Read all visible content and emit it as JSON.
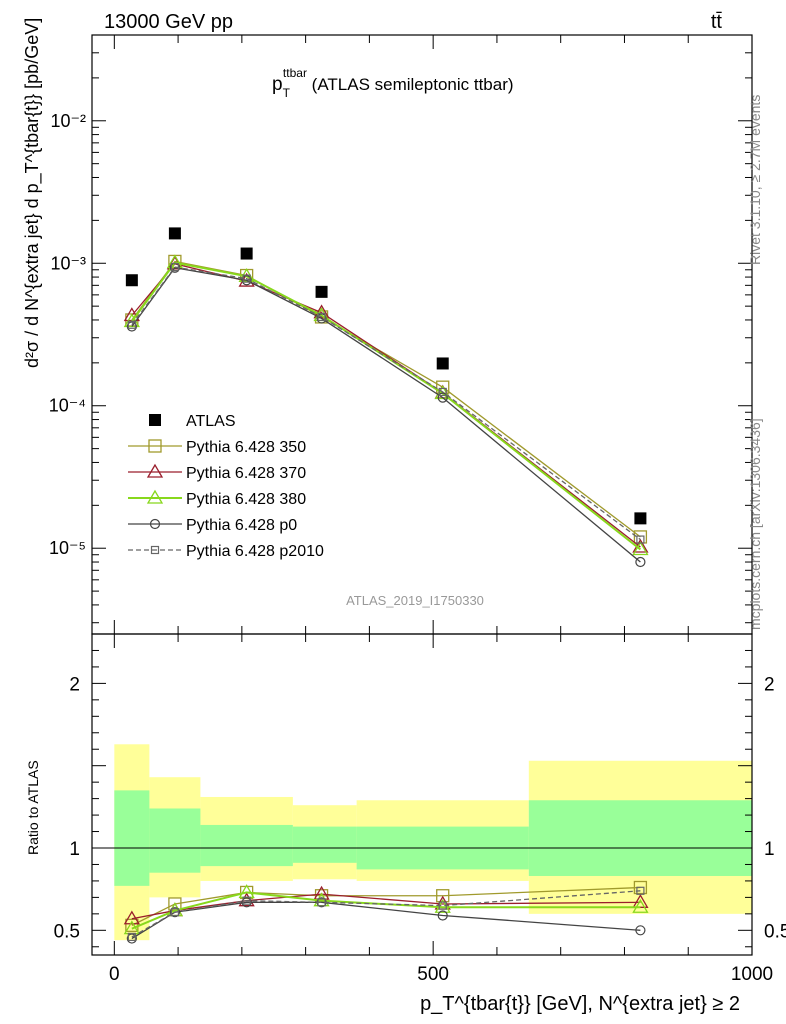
{
  "header": {
    "left": "13000 GeV pp",
    "right": "tt̄"
  },
  "side_labels": {
    "rivet": "Rivet 3.1.10, ≥ 2.7M events",
    "mcplots": "mcplots.cern.ch [arXiv:1306.3436]"
  },
  "plot_title": {
    "main": "p",
    "sub": "T",
    "sup": "ttbar",
    "rest": " (ATLAS semileptonic ttbar)"
  },
  "watermark": "ATLAS_2019_I1750330",
  "y_axis_title": "d²σ / d N^{extra jet} d p_T^{tbar{t}} [pb/GeV]",
  "ratio_axis_title": "Ratio to ATLAS",
  "x_axis_title": "p_T^{tbar{t}} [GeV], N^{extra jet} ≥ 2",
  "colors": {
    "atlas": "#000000",
    "p350": "#a09a2c",
    "p370": "#9a1e2c",
    "p380": "#88d81c",
    "p0": "#444444",
    "p2010": "#666666",
    "band_outer": "#ffff99",
    "band_inner": "#99ff99"
  },
  "chart_data": [
    {
      "type": "line",
      "yscale": "log",
      "xlim": [
        -35,
        1000
      ],
      "ylim": [
        2.5e-06,
        0.04
      ],
      "x_ticks": [
        0,
        500,
        1000
      ],
      "y_ticks": [
        {
          "value": 1e-05,
          "label": "10⁻⁵"
        },
        {
          "value": 0.0001,
          "label": "10⁻⁴"
        },
        {
          "value": 0.001,
          "label": "10⁻³"
        },
        {
          "value": 0.01,
          "label": "10⁻²"
        }
      ],
      "x": [
        27.5,
        95,
        207.5,
        325,
        515,
        825
      ],
      "series": [
        {
          "name": "ATLAS",
          "key": "atlas",
          "marker": "square-filled",
          "values": [
            0.00076,
            0.00162,
            0.00117,
            0.00063,
            0.000198,
            1.62e-05
          ]
        },
        {
          "name": "Pythia 6.428 350",
          "key": "p350",
          "marker": "square-open",
          "values": [
            0.0004,
            0.00103,
            0.00082,
            0.00042,
            0.000135,
            1.2e-05
          ]
        },
        {
          "name": "Pythia 6.428 370",
          "key": "p370",
          "marker": "triangle-open",
          "values": [
            0.00043,
            0.00099,
            0.00075,
            0.00045,
            0.000123,
            1.02e-05
          ]
        },
        {
          "name": "Pythia 6.428 380",
          "key": "p380",
          "marker": "triangle-open",
          "values": [
            0.00039,
            0.00101,
            0.00081,
            0.00043,
            0.000122,
            9.8e-06
          ]
        },
        {
          "name": "Pythia 6.428 p0",
          "key": "p0",
          "marker": "circle-open",
          "values": [
            0.00036,
            0.00093,
            0.00076,
            0.00041,
            0.000114,
            8e-06
          ]
        },
        {
          "name": "Pythia 6.428 p2010",
          "key": "p2010",
          "marker": "square-small",
          "dashed": true,
          "values": [
            0.00037,
            0.00094,
            0.00078,
            0.00042,
            0.000125,
            1.15e-05
          ]
        }
      ]
    },
    {
      "type": "line",
      "xlim": [
        -35,
        1000
      ],
      "ylim": [
        0.35,
        2.3
      ],
      "y_ticks": [
        {
          "value": 0.5,
          "label": "0.5"
        },
        {
          "value": 1,
          "label": "1"
        },
        {
          "value": 2,
          "label": "2"
        }
      ],
      "x": [
        27.5,
        95,
        207.5,
        325,
        515,
        825
      ],
      "bins": [
        [
          0,
          55
        ],
        [
          55,
          135
        ],
        [
          135,
          280
        ],
        [
          280,
          380
        ],
        [
          380,
          650
        ],
        [
          650,
          1000
        ]
      ],
      "band_inner": [
        [
          0.77,
          1.35
        ],
        [
          0.85,
          1.24
        ],
        [
          0.89,
          1.14
        ],
        [
          0.91,
          1.13
        ],
        [
          0.87,
          1.13
        ],
        [
          0.83,
          1.29
        ]
      ],
      "band_outer": [
        [
          0.44,
          1.63
        ],
        [
          0.7,
          1.43
        ],
        [
          0.8,
          1.31
        ],
        [
          0.81,
          1.26
        ],
        [
          0.8,
          1.29
        ],
        [
          0.6,
          1.53
        ]
      ],
      "series": [
        {
          "key": "p350",
          "marker": "square-open",
          "values": [
            0.53,
            0.66,
            0.73,
            0.71,
            0.71,
            0.76
          ]
        },
        {
          "key": "p370",
          "marker": "triangle-open",
          "values": [
            0.57,
            0.62,
            0.68,
            0.72,
            0.66,
            0.67
          ]
        },
        {
          "key": "p380",
          "marker": "triangle-open",
          "values": [
            0.51,
            0.62,
            0.73,
            0.68,
            0.64,
            0.64
          ]
        },
        {
          "key": "p0",
          "marker": "circle-open",
          "values": [
            0.45,
            0.61,
            0.67,
            0.67,
            0.59,
            0.5
          ]
        },
        {
          "key": "p2010",
          "marker": "square-small",
          "dashed": true,
          "values": [
            0.46,
            0.61,
            0.68,
            0.67,
            0.65,
            0.74
          ]
        }
      ]
    }
  ]
}
